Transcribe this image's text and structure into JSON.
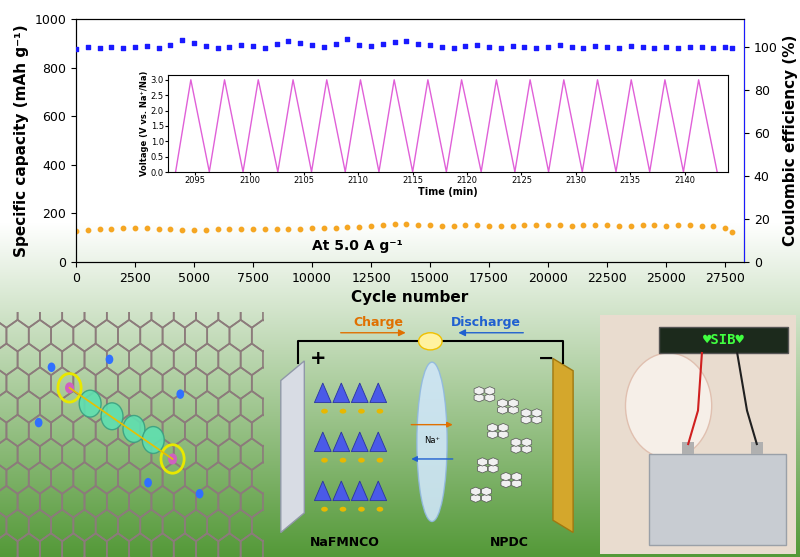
{
  "chart_data": [
    {
      "type": "scatter",
      "x_label": "Cycle number",
      "y_label": "Specific capacity (mAh g⁻¹)",
      "y2_label": "Coulombic efficiency (%)",
      "annotation": "At 5.0 A g⁻¹",
      "x": [
        0,
        500,
        1000,
        1500,
        2000,
        2500,
        3000,
        3500,
        4000,
        4500,
        5000,
        5500,
        6000,
        6500,
        7000,
        7500,
        8000,
        8500,
        9000,
        9500,
        10000,
        10500,
        11000,
        11500,
        12000,
        12500,
        13000,
        13500,
        14000,
        14500,
        15000,
        15500,
        16000,
        16500,
        17000,
        17500,
        18000,
        18500,
        19000,
        19500,
        20000,
        20500,
        21000,
        21500,
        22000,
        22500,
        23000,
        23500,
        24000,
        24500,
        25000,
        25500,
        26000,
        26500,
        27000,
        27500,
        27800
      ],
      "series": [
        {
          "type": "scatter",
          "color": "#f5a623",
          "marker": "circle",
          "values": [
            128,
            133,
            135,
            137,
            138,
            140,
            139,
            137,
            136,
            132,
            130,
            133,
            135,
            134,
            136,
            137,
            136,
            135,
            134,
            136,
            138,
            139,
            141,
            143,
            145,
            148,
            152,
            155,
            156,
            153,
            150,
            148,
            149,
            151,
            150,
            148,
            147,
            149,
            151,
            153,
            152,
            150,
            149,
            151,
            152,
            150,
            148,
            149,
            151,
            150,
            149,
            150,
            151,
            149,
            146,
            138,
            124
          ]
        },
        {
          "type": "scatter",
          "color": "#1a1aff",
          "marker": "square",
          "axis": "y2",
          "values": [
            99.4,
            100.2,
            99.8,
            100.3,
            99.6,
            100.1,
            100.6,
            99.9,
            100.9,
            103.5,
            102.2,
            100.5,
            99.8,
            100.3,
            101.0,
            100.6,
            99.9,
            101.8,
            103.0,
            102.1,
            101.2,
            100.4,
            101.6,
            103.8,
            101.0,
            100.7,
            101.5,
            102.6,
            103.2,
            101.8,
            100.9,
            100.2,
            99.8,
            100.5,
            100.9,
            100.1,
            99.6,
            100.8,
            100.2,
            99.9,
            100.4,
            100.9,
            100.1,
            99.7,
            100.6,
            100.2,
            99.8,
            100.5,
            100.1,
            99.6,
            100.3,
            99.9,
            100.4,
            100.0,
            99.7,
            100.2,
            99.8
          ]
        }
      ],
      "xlim": [
        0,
        28300
      ],
      "xticks": [
        0,
        2500,
        5000,
        7500,
        10000,
        12500,
        15000,
        17500,
        20000,
        22500,
        25000,
        27500
      ],
      "ylim": [
        0,
        1000
      ],
      "yticks": [
        0,
        200,
        400,
        600,
        800,
        1000
      ],
      "y2lim": [
        0,
        113
      ],
      "y2ticks": [
        0,
        20,
        40,
        60,
        80,
        100
      ]
    },
    {
      "type": "line",
      "x_label": "Time (min)",
      "y_label": "Voltage (V vs. Na⁺/Na)",
      "x": [
        2093.2,
        2094.6,
        2096.3,
        2097.7,
        2099.4,
        2100.8,
        2102.6,
        2104.0,
        2105.7,
        2107.1,
        2108.8,
        2110.2,
        2111.9,
        2113.3,
        2115.0,
        2116.4,
        2118.1,
        2119.5,
        2121.3,
        2122.7,
        2124.4,
        2125.8,
        2127.5,
        2128.9,
        2130.6,
        2132.0,
        2133.7,
        2135.1,
        2136.8,
        2138.2,
        2139.9,
        2141.3,
        2143.0
      ],
      "series": [
        {
          "color": "#e060d8",
          "line_style": "solid",
          "values": [
            0.01,
            3.0,
            0.01,
            3.0,
            0.01,
            3.0,
            0.01,
            3.0,
            0.01,
            3.0,
            0.01,
            3.0,
            0.01,
            3.0,
            0.01,
            3.0,
            0.01,
            3.0,
            0.01,
            3.0,
            0.01,
            3.0,
            0.01,
            3.0,
            0.01,
            3.0,
            0.01,
            3.0,
            0.01,
            3.0,
            0.01,
            3.0,
            0.01
          ]
        }
      ],
      "xlim": [
        2092.5,
        2144
      ],
      "xticks": [
        2095,
        2100,
        2105,
        2110,
        2115,
        2120,
        2125,
        2130,
        2135,
        2140
      ],
      "ylim": [
        0,
        3.15
      ],
      "yticks": [
        {
          "value": 0,
          "label": "0.0"
        },
        0.5,
        {
          "value": 1,
          "label": "1.0"
        },
        1.5,
        {
          "value": 2,
          "label": "2.0"
        },
        2.5,
        {
          "value": 3,
          "label": "3.0"
        }
      ]
    }
  ],
  "schematic": {
    "charge": "Charge",
    "discharge": "Discharge",
    "positive": "+",
    "negative": "−",
    "cathode": "NaFMNCO",
    "anode": "NPDC",
    "ion": "Na⁺",
    "led_display": "♥SIB♥"
  }
}
